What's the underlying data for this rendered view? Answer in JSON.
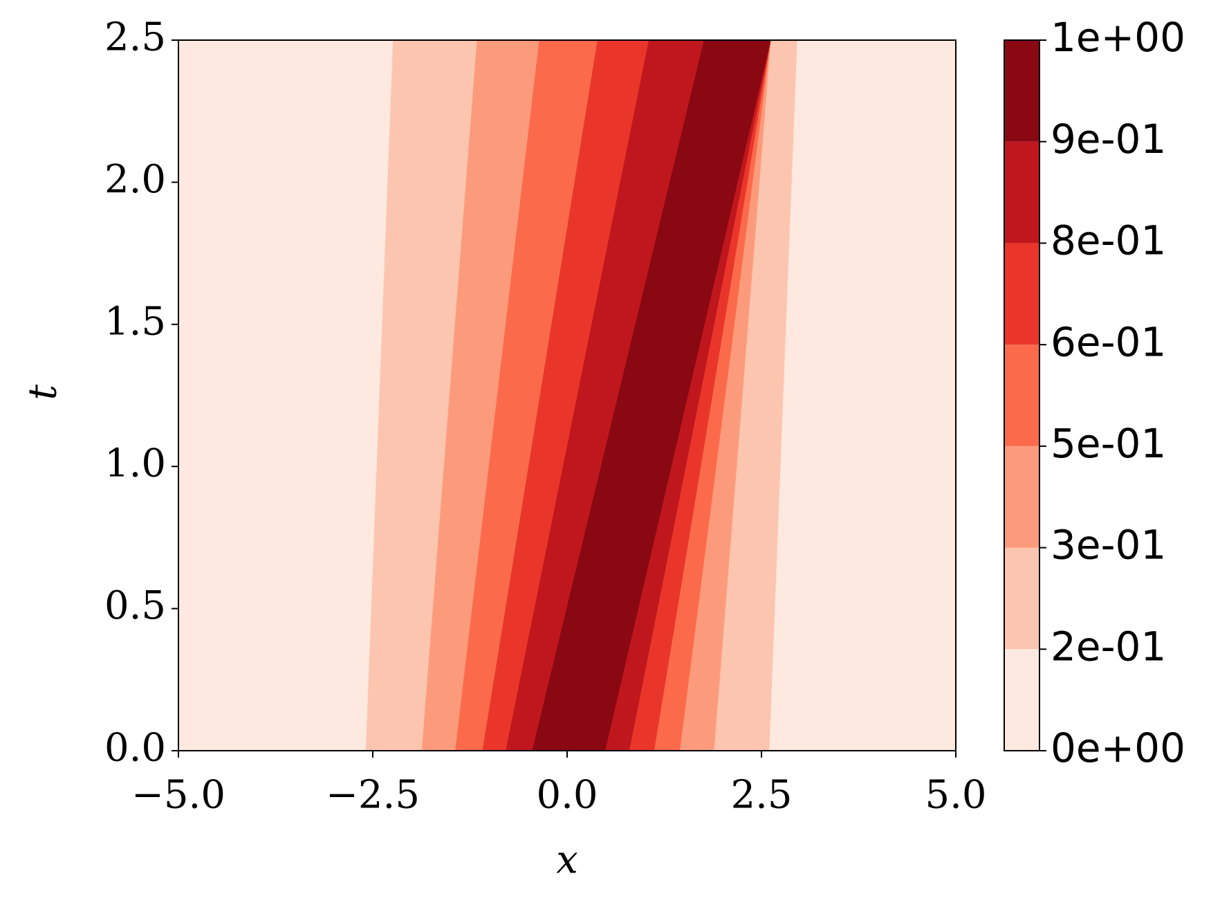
{
  "chart_data": {
    "type": "contourf",
    "xlabel": "x",
    "ylabel": "t",
    "xlim": [
      -5,
      5
    ],
    "ylim": [
      0,
      2.5
    ],
    "xticks": [
      {
        "value": -5,
        "label": "−5.0"
      },
      {
        "value": -2.5,
        "label": "−2.5"
      },
      {
        "value": 0,
        "label": "0.0"
      },
      {
        "value": 2.5,
        "label": "2.5"
      },
      {
        "value": 5,
        "label": "5.0"
      }
    ],
    "yticks": [
      {
        "value": 0,
        "label": "0.0"
      },
      {
        "value": 0.5,
        "label": "0.5"
      },
      {
        "value": 1,
        "label": "1.0"
      },
      {
        "value": 1.5,
        "label": "1.5"
      },
      {
        "value": 2,
        "label": "2.0"
      },
      {
        "value": 2.5,
        "label": "2.5"
      }
    ],
    "colorbar": {
      "levels": [
        {
          "value": 0,
          "label": "0e+00"
        },
        {
          "value": 0.2,
          "label": "2e-01"
        },
        {
          "value": 0.3,
          "label": "3e-01"
        },
        {
          "value": 0.5,
          "label": "5e-01"
        },
        {
          "value": 0.6,
          "label": "6e-01"
        },
        {
          "value": 0.8,
          "label": "8e-01"
        },
        {
          "value": 0.9,
          "label": "9e-01"
        },
        {
          "value": 1,
          "label": "1e+00"
        }
      ],
      "colors": [
        "#fde9df",
        "#fcc5b0",
        "#fc9b7c",
        "#fb6b4b",
        "#ea362a",
        "#c0171e",
        "#8a0812"
      ]
    },
    "t": [
      0,
      2.5
    ],
    "regions": [
      {
        "x_bottom": [
          -2.59,
          2.6
        ],
        "x_top": [
          -2.24,
          2.96
        ]
      },
      {
        "x_bottom": [
          -1.87,
          1.89
        ],
        "x_top": [
          -1.16,
          2.62
        ]
      },
      {
        "x_bottom": [
          -1.44,
          1.45
        ],
        "x_top": [
          -0.36,
          2.62
        ]
      },
      {
        "x_bottom": [
          -1.09,
          1.12
        ],
        "x_top": [
          0.39,
          2.62
        ]
      },
      {
        "x_bottom": [
          -0.79,
          0.8
        ],
        "x_top": [
          1.05,
          2.62
        ]
      },
      {
        "x_bottom": [
          -0.45,
          0.49
        ],
        "x_top": [
          1.76,
          2.62
        ]
      }
    ]
  }
}
